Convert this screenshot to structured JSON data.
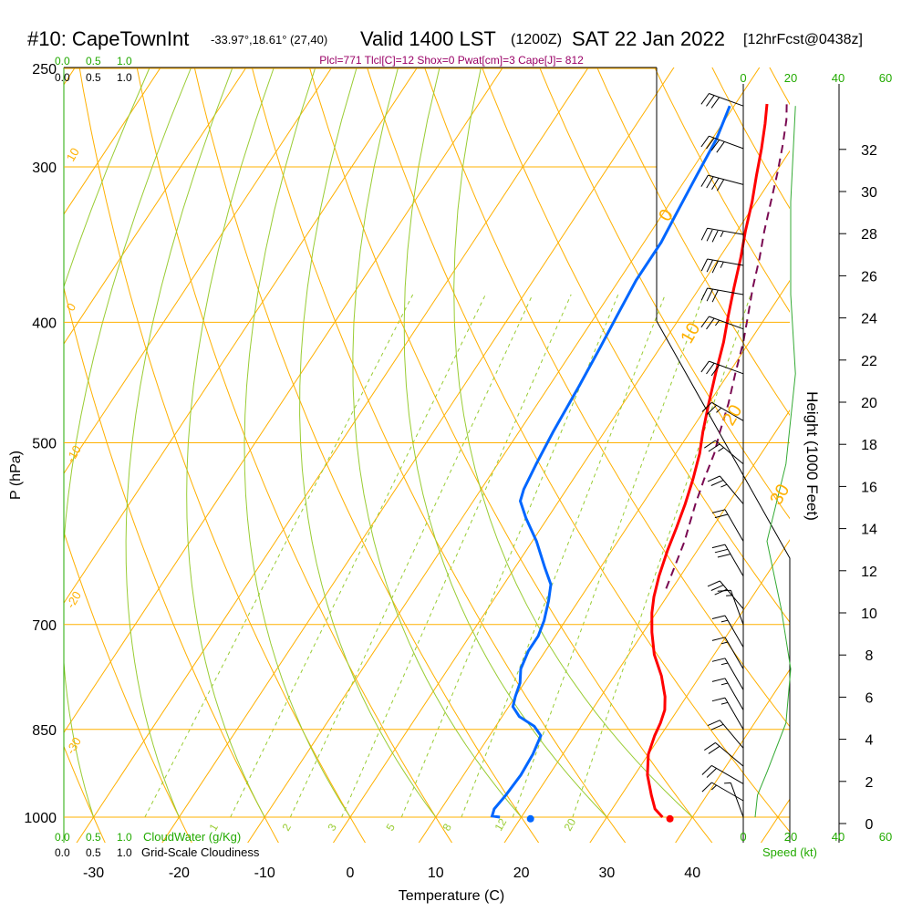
{
  "header": {
    "station": "#10: CapeTownInt",
    "coords": "-33.97°,18.61° (27,40)",
    "valid": "Valid 1400 LST",
    "utc": "(1200Z)",
    "date": "SAT 22 Jan 2022",
    "forecast": "[12hrFcst@0438z]",
    "params": "Plcl=771 Tlcl[C]=12 Shox=0 Pwat[cm]=3 Cape[J]= 812"
  },
  "colors": {
    "temperature": "#ff0000",
    "dewpoint": "#0066ff",
    "parcel": "#7a0a52",
    "isobar": "#ffb000",
    "mixing_ratio": "#99cc33",
    "wind": "#000000",
    "speed_profile": "#33aa33",
    "params_text": "#990066",
    "green_text": "#22aa00"
  },
  "chart_data": {
    "type": "line",
    "title": "Skew-T sounding",
    "xlabel": "Temperature (C)",
    "ylabel": "P (hPa)",
    "right_label": "Height (1000 Feet)",
    "temperature_ticks": [
      "-30",
      "-20",
      "-10",
      "0",
      "10",
      "20",
      "30",
      "40"
    ],
    "temperature_range": [
      -35,
      45
    ],
    "pressure_ticks": [
      "250",
      "300",
      "400",
      "500",
      "700",
      "850",
      "1000"
    ],
    "height_ticks": [
      "0",
      "2",
      "4",
      "6",
      "8",
      "10",
      "12",
      "14",
      "16",
      "18",
      "20",
      "22",
      "24",
      "26",
      "28",
      "30",
      "32"
    ],
    "cloud_scale_top_green": [
      "0.0",
      "0.5",
      "1.0"
    ],
    "cloud_scale_top_black": [
      "0.0",
      "0.5",
      "1.0"
    ],
    "cloud_scale_bottom_green": [
      "0.0",
      "0.5",
      "1.0"
    ],
    "cloud_scale_bottom_black": [
      "0.0",
      "0.5",
      "1.0"
    ],
    "cloudwater_label": "CloudWater (g/Kg)",
    "cloudiness_label": "Grid-Scale Cloudiness",
    "speed_ticks": [
      "0",
      "20",
      "40",
      "60"
    ],
    "speed_label": "Speed (kt)",
    "dry_adiabat_labels": [
      "10",
      "0",
      "-10",
      "-20",
      "-30",
      "0",
      "10",
      "20",
      "30"
    ],
    "mixing_ratio_labels": [
      "1",
      "2",
      "3",
      "5",
      "8",
      "12",
      "20"
    ],
    "series": [
      {
        "name": "Temperature",
        "points": [
          [
            36.5,
            1000
          ],
          [
            35,
            985
          ],
          [
            33.5,
            960
          ],
          [
            31.5,
            925
          ],
          [
            30,
            890
          ],
          [
            29.3,
            860
          ],
          [
            29,
            840
          ],
          [
            28.5,
            820
          ],
          [
            27.5,
            800
          ],
          [
            25.5,
            770
          ],
          [
            23,
            740
          ],
          [
            21,
            710
          ],
          [
            19.5,
            685
          ],
          [
            18.5,
            665
          ],
          [
            17.5,
            640
          ],
          [
            16.5,
            610
          ],
          [
            15.8,
            585
          ],
          [
            15,
            560
          ],
          [
            14,
            535
          ],
          [
            12.8,
            510
          ],
          [
            11.5,
            490
          ],
          [
            10,
            465
          ],
          [
            8.5,
            440
          ],
          [
            7,
            415
          ],
          [
            5.5,
            395
          ],
          [
            4,
            375
          ],
          [
            2.5,
            355
          ],
          [
            1,
            338
          ],
          [
            -0.5,
            320
          ],
          [
            -2,
            305
          ],
          [
            -3.5,
            290
          ],
          [
            -5,
            277
          ],
          [
            -6.3,
            267
          ]
        ]
      },
      {
        "name": "Dewpoint",
        "points": [
          [
            17.5,
            1000
          ],
          [
            16.5,
            998
          ],
          [
            16.2,
            985
          ],
          [
            16.5,
            960
          ],
          [
            16.7,
            925
          ],
          [
            16.5,
            890
          ],
          [
            16,
            860
          ],
          [
            14.5,
            845
          ],
          [
            12,
            830
          ],
          [
            10.5,
            815
          ],
          [
            10,
            800
          ],
          [
            9.5,
            780
          ],
          [
            8.5,
            760
          ],
          [
            8,
            735
          ],
          [
            8,
            715
          ],
          [
            7.5,
            695
          ],
          [
            6.5,
            670
          ],
          [
            5.5,
            650
          ],
          [
            3.5,
            630
          ],
          [
            0.5,
            600
          ],
          [
            -2.5,
            575
          ],
          [
            -4.5,
            557
          ],
          [
            -5,
            545
          ],
          [
            -5.5,
            520
          ],
          [
            -6,
            490
          ],
          [
            -6.5,
            450
          ],
          [
            -7,
            420
          ],
          [
            -7.5,
            395
          ],
          [
            -8,
            370
          ],
          [
            -8,
            345
          ],
          [
            -8.5,
            325
          ],
          [
            -9,
            305
          ],
          [
            -9.5,
            285
          ],
          [
            -10.5,
            268
          ]
        ]
      },
      {
        "name": "Parcel",
        "points": [
          [
            19.3,
            655
          ],
          [
            18.5,
            625
          ],
          [
            17.8,
            600
          ],
          [
            17,
            580
          ],
          [
            16.2,
            560
          ],
          [
            15.3,
            535
          ],
          [
            14.5,
            510
          ],
          [
            13.5,
            490
          ],
          [
            12.3,
            465
          ],
          [
            10.8,
            440
          ],
          [
            9.3,
            415
          ],
          [
            7.8,
            395
          ],
          [
            6.2,
            375
          ],
          [
            4.7,
            355
          ],
          [
            3.2,
            338
          ],
          [
            1.7,
            320
          ],
          [
            0.2,
            303
          ],
          [
            -1.3,
            288
          ],
          [
            -2.8,
            275
          ],
          [
            -4.3,
            265
          ]
        ]
      }
    ],
    "surface_points": [
      {
        "name": "surface temperature",
        "t": 37.5,
        "p": 1003
      },
      {
        "name": "surface dewpoint",
        "t": 21.2,
        "p": 1003
      }
    ],
    "wind_barbs": [
      {
        "p": 268,
        "dir": 290,
        "kt": 30
      },
      {
        "p": 290,
        "dir": 290,
        "kt": 40
      },
      {
        "p": 310,
        "dir": 285,
        "kt": 40
      },
      {
        "p": 340,
        "dir": 280,
        "kt": 35
      },
      {
        "p": 360,
        "dir": 280,
        "kt": 35
      },
      {
        "p": 380,
        "dir": 280,
        "kt": 30
      },
      {
        "p": 405,
        "dir": 290,
        "kt": 25
      },
      {
        "p": 440,
        "dir": 290,
        "kt": 30
      },
      {
        "p": 480,
        "dir": 300,
        "kt": 25
      },
      {
        "p": 520,
        "dir": 310,
        "kt": 25
      },
      {
        "p": 560,
        "dir": 320,
        "kt": 25
      },
      {
        "p": 600,
        "dir": 330,
        "kt": 20
      },
      {
        "p": 640,
        "dir": 330,
        "kt": 30
      },
      {
        "p": 680,
        "dir": 320,
        "kt": 30
      },
      {
        "p": 700,
        "dir": 340,
        "kt": 15
      },
      {
        "p": 730,
        "dir": 330,
        "kt": 15
      },
      {
        "p": 760,
        "dir": 330,
        "kt": 15
      },
      {
        "p": 790,
        "dir": 330,
        "kt": 15
      },
      {
        "p": 820,
        "dir": 330,
        "kt": 15
      },
      {
        "p": 850,
        "dir": 330,
        "kt": 15
      },
      {
        "p": 880,
        "dir": 320,
        "kt": 20
      },
      {
        "p": 910,
        "dir": 310,
        "kt": 20
      },
      {
        "p": 940,
        "dir": 300,
        "kt": 20
      },
      {
        "p": 970,
        "dir": 300,
        "kt": 15
      },
      {
        "p": 1000,
        "dir": 340,
        "kt": 5
      }
    ],
    "speed_profile": [
      [
        22,
        268
      ],
      [
        20,
        320
      ],
      [
        20,
        380
      ],
      [
        22,
        440
      ],
      [
        18,
        520
      ],
      [
        10,
        600
      ],
      [
        16,
        680
      ],
      [
        20,
        760
      ],
      [
        18,
        840
      ],
      [
        10,
        920
      ],
      [
        6,
        960
      ],
      [
        5,
        1000
      ]
    ]
  }
}
